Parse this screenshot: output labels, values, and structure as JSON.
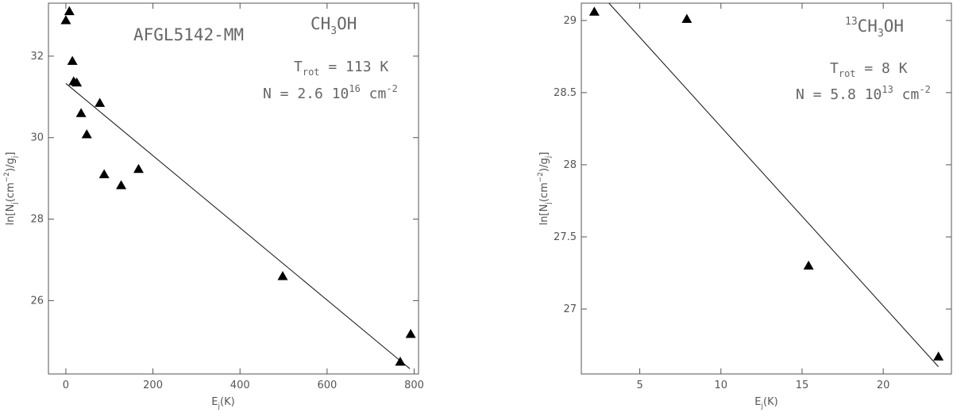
{
  "chart_data": [
    {
      "type": "scatter",
      "xlabel": "E_j(K)",
      "ylabel": "ln[N_j(cm^-2)/g_j]",
      "xlim": [
        -40,
        810
      ],
      "ylim": [
        24.2,
        33.3
      ],
      "x_ticks": [
        0,
        200,
        400,
        600,
        800
      ],
      "y_ticks": [
        26,
        28,
        30,
        32
      ],
      "x_tick_labels": [
        "0",
        "200",
        "400",
        "600",
        "800"
      ],
      "y_tick_labels": [
        "26",
        "28",
        "30",
        "32"
      ],
      "source_label": "AFGL5142-MM",
      "molecule": {
        "prefix": "",
        "pre": "CH",
        "sub": "3",
        "post": "OH"
      },
      "trot": {
        "label": "T",
        "sub": "rot",
        "value": " = 113 K"
      },
      "ncol": {
        "label": "N = 2.6 10",
        "exp": "16",
        "unit": " cm",
        "unit_exp": "-2"
      },
      "points": [
        {
          "x": 0,
          "y": 32.88
        },
        {
          "x": 8,
          "y": 33.1
        },
        {
          "x": 15,
          "y": 31.88
        },
        {
          "x": 18,
          "y": 31.38
        },
        {
          "x": 25,
          "y": 31.35
        },
        {
          "x": 35,
          "y": 30.6
        },
        {
          "x": 48,
          "y": 30.08
        },
        {
          "x": 78,
          "y": 30.85
        },
        {
          "x": 88,
          "y": 29.1
        },
        {
          "x": 127,
          "y": 28.83
        },
        {
          "x": 167,
          "y": 29.23
        },
        {
          "x": 498,
          "y": 26.6
        },
        {
          "x": 768,
          "y": 24.5
        },
        {
          "x": 792,
          "y": 25.18
        }
      ],
      "fit_line": {
        "x": [
          0,
          790
        ],
        "y": [
          31.33,
          24.33
        ]
      },
      "grid": false
    },
    {
      "type": "scatter",
      "xlabel": "E_j(K)",
      "ylabel": "ln[N_j(cm^-2)/g_j]",
      "xlim": [
        1.4,
        24.2
      ],
      "ylim": [
        26.55,
        29.12
      ],
      "x_ticks": [
        5,
        10,
        15,
        20
      ],
      "y_ticks": [
        27,
        27.5,
        28,
        28.5,
        29
      ],
      "x_tick_labels": [
        "5",
        "10",
        "15",
        "20"
      ],
      "y_tick_labels": [
        "27",
        "27.5",
        "28",
        "28.5",
        "29"
      ],
      "source_label": "",
      "molecule": {
        "prefix": "13",
        "pre": "CH",
        "sub": "3",
        "post": "OH"
      },
      "trot": {
        "label": "T",
        "sub": "rot",
        "value": " = 8 K"
      },
      "ncol": {
        "label": "N = 5.8 10",
        "exp": "13",
        "unit": " cm",
        "unit_exp": "-2"
      },
      "points": [
        {
          "x": 2.2,
          "y": 29.06
        },
        {
          "x": 7.9,
          "y": 29.01
        },
        {
          "x": 15.4,
          "y": 27.3
        },
        {
          "x": 23.4,
          "y": 26.67
        }
      ],
      "fit_line": {
        "x": [
          3.1,
          23.4
        ],
        "y": [
          29.12,
          26.6
        ]
      },
      "grid": false
    }
  ]
}
